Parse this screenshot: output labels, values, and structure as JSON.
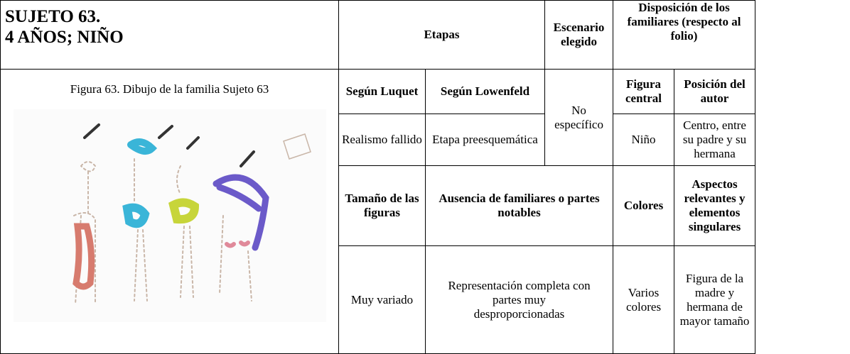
{
  "header": {
    "title": [
      "SUJETO 63.",
      "4 AÑOS; NIÑO"
    ],
    "etapas": "Etapas",
    "escenario": "Escenario elegido",
    "disposicion": "Disposición de los familiares (respecto al folio)"
  },
  "figure": {
    "caption": "Figura 63. Dibujo de la familia Sujeto 63"
  },
  "table": {
    "rows": [
      [
        "Según Luquet",
        "Según Lowenfeld",
        "Figura central",
        "Posición del autor"
      ],
      [
        "Realismo fallido",
        "Etapa preesquemática",
        "No específico",
        "Niño",
        "Centro, entre su padre y su hermana"
      ],
      [
        "Tamaño de las figuras",
        "Ausencia de familiares o partes notables",
        "Colores",
        "Aspectos relevantes y elementos singulares"
      ],
      [
        "Muy variado",
        "Representación completa con partes muy desproporcionadas",
        "Varios colores",
        "Figura de la madre y hermana de mayor tamaño"
      ]
    ]
  }
}
